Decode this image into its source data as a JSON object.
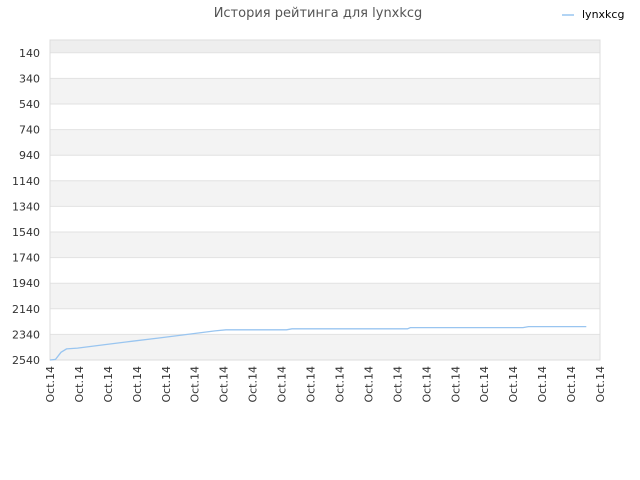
{
  "chart_data": {
    "type": "line",
    "title": "История рейтинга для lynxkcg",
    "xlabel": "",
    "ylabel": "",
    "y_reversed": true,
    "ylim": [
      2540,
      40
    ],
    "y_ticks": [
      140,
      340,
      540,
      740,
      940,
      1140,
      1340,
      1540,
      1740,
      1940,
      2140,
      2340,
      2540
    ],
    "x_ticks": [
      "Oct.14",
      "Oct.14",
      "Oct.14",
      "Oct.14",
      "Oct.14",
      "Oct.14",
      "Oct.14",
      "Oct.14",
      "Oct.14",
      "Oct.14",
      "Oct.14",
      "Oct.14",
      "Oct.14",
      "Oct.14",
      "Oct.14",
      "Oct.14",
      "Oct.14",
      "Oct.14",
      "Oct.14",
      "Oct.14"
    ],
    "grid": true,
    "legend_position": "top-right",
    "series": [
      {
        "name": "lynxkcg",
        "color": "#99c5f0",
        "x": [
          0.0,
          0.01,
          0.02,
          0.03,
          0.05,
          0.1,
          0.15,
          0.2,
          0.25,
          0.3,
          0.32,
          0.4,
          0.43,
          0.44,
          0.6,
          0.65,
          0.655,
          0.85,
          0.86,
          0.87,
          0.975
        ],
        "values": [
          2540,
          2535,
          2480,
          2453,
          2447,
          2420,
          2393,
          2367,
          2340,
          2313,
          2304,
          2304,
          2304,
          2296,
          2296,
          2296,
          2287,
          2287,
          2287,
          2279,
          2279
        ]
      }
    ]
  }
}
